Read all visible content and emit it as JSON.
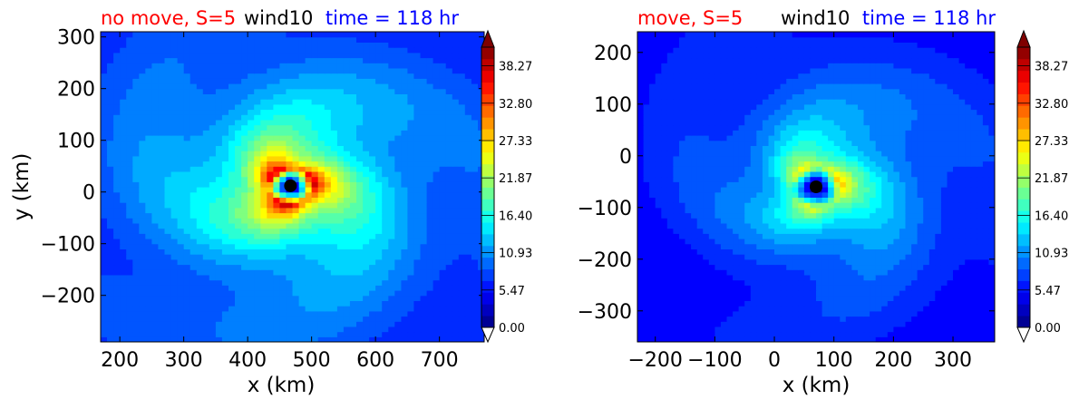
{
  "palette": {
    "title_condition": "#ff0000",
    "title_variable": "#000000",
    "title_time": "#0000ff",
    "colormap": [
      "#00007f",
      "#0000ff",
      "#007fff",
      "#00ffff",
      "#7fff7f",
      "#ffff00",
      "#ff7f00",
      "#ff0000",
      "#7f0000"
    ],
    "marker": "#000000"
  },
  "chart_data": [
    {
      "type": "heatmap",
      "title_parts": {
        "condition": "no move, S=5",
        "variable": "wind10",
        "time": "time = 118 hr"
      },
      "xlabel": "x (km)",
      "ylabel": "y (km)",
      "xlim": [
        170,
        770
      ],
      "ylim": [
        -290,
        310
      ],
      "xticks": [
        200,
        300,
        400,
        500,
        600,
        700
      ],
      "yticks": [
        300,
        200,
        100,
        0,
        -100,
        -200
      ],
      "xtick_labels": [
        "200",
        "300",
        "400",
        "500",
        "600",
        "700"
      ],
      "ytick_labels": [
        "300",
        "200",
        "100",
        "0",
        "−100",
        "−200"
      ],
      "center": {
        "x": 467,
        "y": 12
      },
      "peak_wind": 36,
      "rmw_km": 35,
      "colorbar": {
        "min": 0.0,
        "max": 41.0,
        "labels": [
          "38.27",
          "32.80",
          "27.33",
          "21.87",
          "16.40",
          "10.93",
          "5.47",
          "0.00"
        ],
        "extend": "both"
      }
    },
    {
      "type": "heatmap",
      "title_parts": {
        "condition": "move, S=5",
        "variable": "wind10",
        "time": "time = 118 hr"
      },
      "xlabel": "x (km)",
      "ylabel": "",
      "xlim": [
        -230,
        370
      ],
      "ylim": [
        -360,
        240
      ],
      "xticks": [
        -200,
        -100,
        0,
        100,
        200,
        300
      ],
      "yticks": [
        200,
        100,
        0,
        -100,
        -200,
        -300
      ],
      "xtick_labels": [
        "−200",
        "−100",
        "0",
        "100",
        "200",
        "300"
      ],
      "ytick_labels": [
        "200",
        "100",
        "0",
        "−100",
        "−200",
        "−300"
      ],
      "center": {
        "x": 70,
        "y": -60
      },
      "peak_wind": 25,
      "rmw_km": 40,
      "colorbar": {
        "min": 0.0,
        "max": 41.0,
        "labels": [
          "38.27",
          "32.80",
          "27.33",
          "21.87",
          "16.40",
          "10.93",
          "5.47",
          "0.00"
        ],
        "extend": "both"
      }
    }
  ]
}
